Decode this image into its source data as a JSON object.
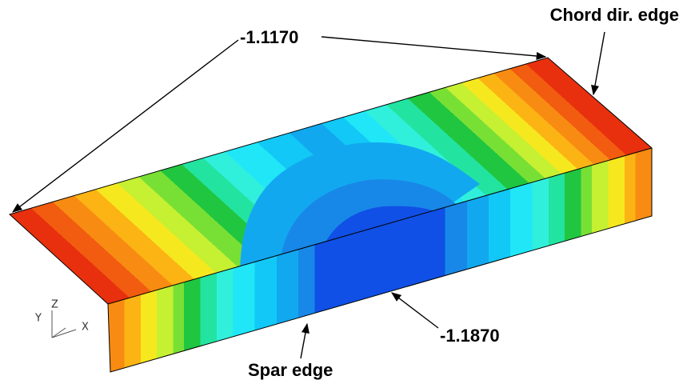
{
  "annotations": {
    "top_value": "-1.1170",
    "chord_edge": "Chord dir. edge",
    "bottom_value": "-1.1870",
    "spar_edge": "Spar edge"
  },
  "axes_triad": {
    "x": "X",
    "y": "Y",
    "z": "Z"
  }
}
